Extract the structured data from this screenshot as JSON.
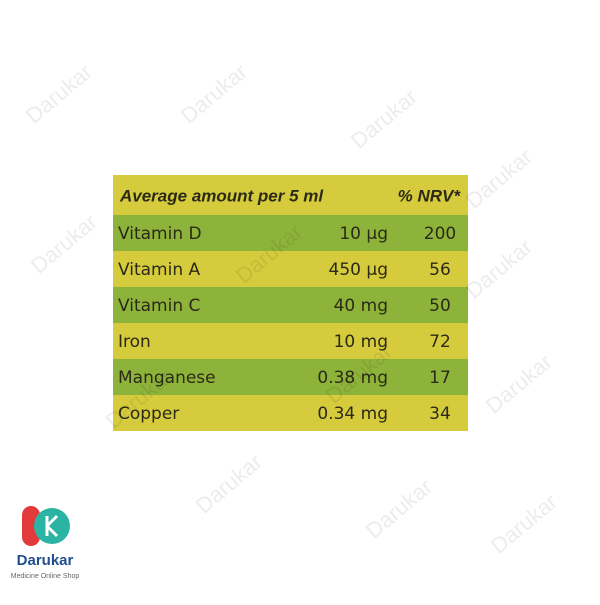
{
  "watermark": "Darukar",
  "table": {
    "header": [
      "Average amount per 5 ml",
      "% NRV*"
    ],
    "rows": [
      [
        "Vitamin D",
        "10 µg",
        "200"
      ],
      [
        "Vitamin A",
        "450 µg",
        "56"
      ],
      [
        "Vitamin C",
        "40 mg",
        "50"
      ],
      [
        "Iron",
        "10 mg",
        "72"
      ],
      [
        "Manganese",
        "0.38 mg",
        "17"
      ],
      [
        "Copper",
        "0.34 mg",
        "34"
      ]
    ]
  },
  "logo": {
    "name": "Darukar",
    "tagline": "Medicine Online Shop"
  }
}
